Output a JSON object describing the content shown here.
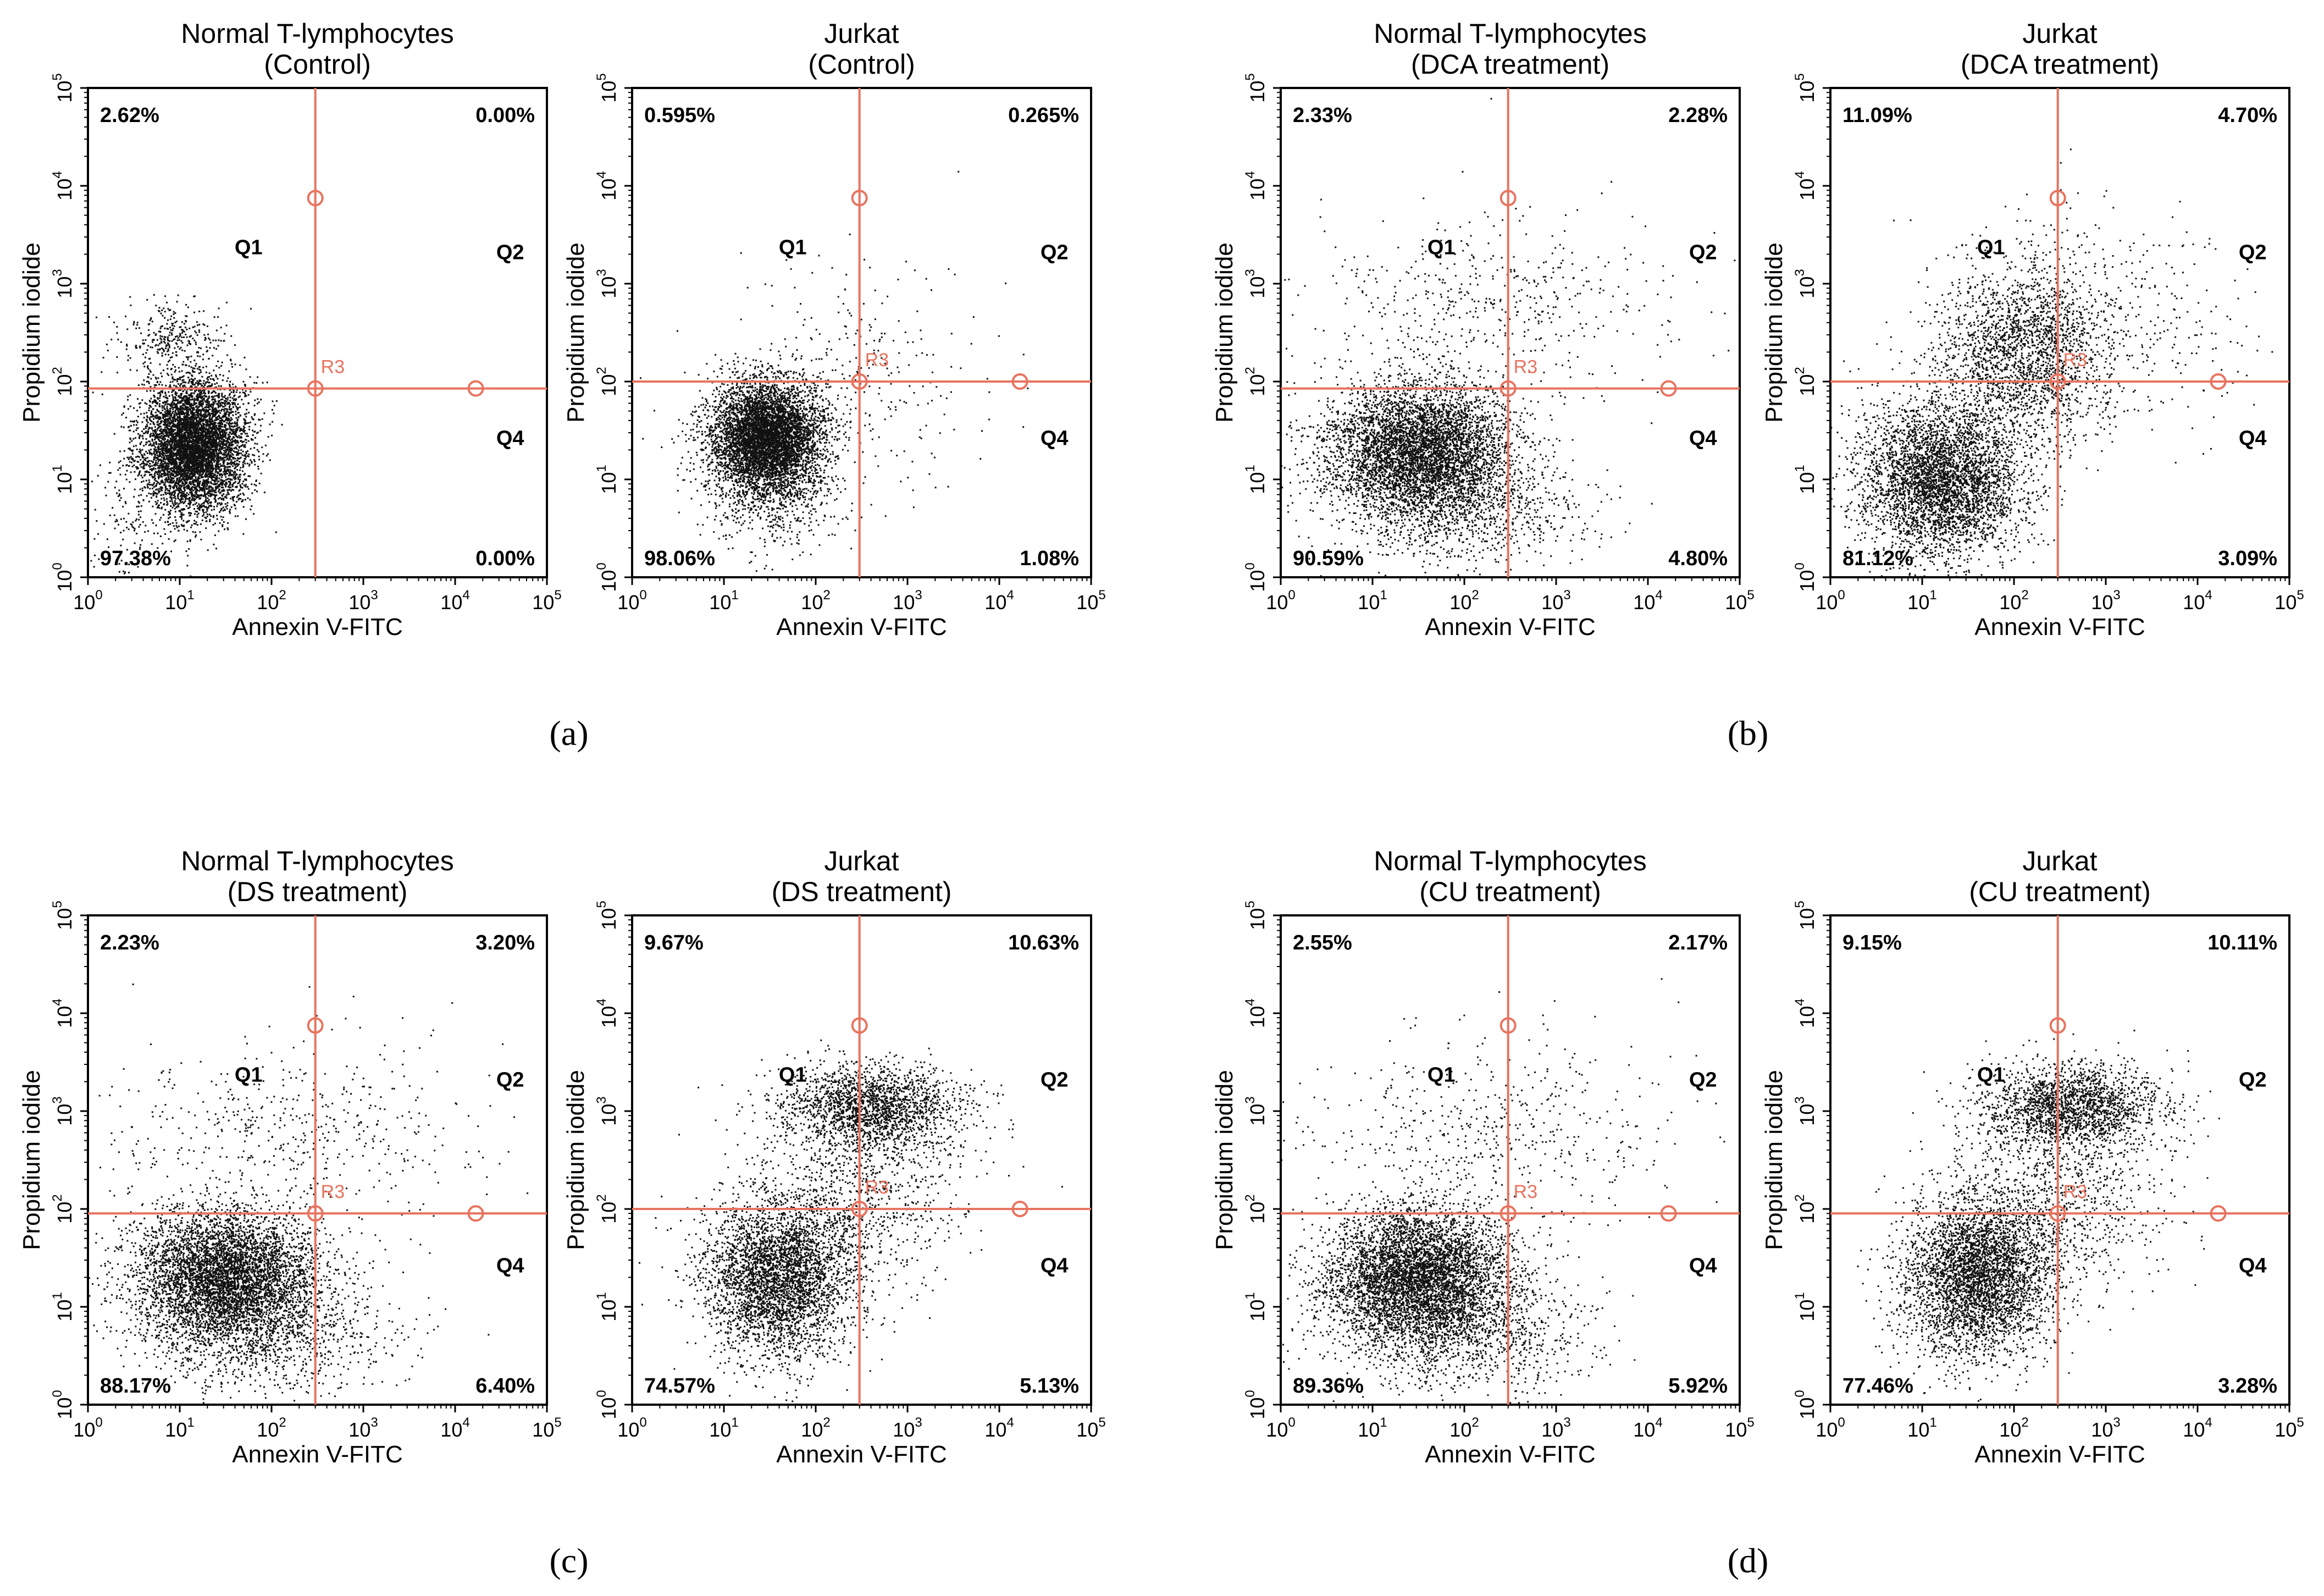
{
  "figure": {
    "panel_labels": [
      "(a)",
      "(b)",
      "(c)",
      "(d)"
    ]
  },
  "colors": {
    "gate": "#e8735f",
    "dots": "#111111",
    "axis": "#000000",
    "background": "#ffffff"
  },
  "chart_data": [
    {
      "panel": "(a)",
      "type": "scatter",
      "title": [
        "Normal T-lymphocytes",
        "(Control)"
      ],
      "xlabel": "Annexin V-FITC",
      "ylabel": "Propidium iodide",
      "xlim": [
        1,
        100000
      ],
      "ylim": [
        1,
        100000
      ],
      "scale": "log",
      "gate": {
        "label": "R3",
        "x": 300,
        "y": 85
      },
      "quadrants": [
        "Q1",
        "Q2",
        "Q4"
      ],
      "percentages": {
        "upper_left": "2.62%",
        "upper_right": "0.00%",
        "lower_left": "97.38%",
        "lower_right": "0.00%"
      },
      "population": "normal_ctrl"
    },
    {
      "panel": "(a)",
      "type": "scatter",
      "title": [
        "Jurkat",
        "(Control)"
      ],
      "xlabel": "Annexin V-FITC",
      "ylabel": "Propidium iodide",
      "xlim": [
        1,
        100000
      ],
      "ylim": [
        1,
        100000
      ],
      "scale": "log",
      "gate": {
        "label": "R3",
        "x": 300,
        "y": 100
      },
      "quadrants": [
        "Q1",
        "Q2",
        "Q4"
      ],
      "percentages": {
        "upper_left": "0.595%",
        "upper_right": "0.265%",
        "lower_left": "98.06%",
        "lower_right": "1.08%"
      },
      "population": "jurkat_ctrl"
    },
    {
      "panel": "(b)",
      "type": "scatter",
      "title": [
        "Normal T-lymphocytes",
        "(DCA treatment)"
      ],
      "xlabel": "Annexin V-FITC",
      "ylabel": "Propidium iodide",
      "xlim": [
        1,
        100000
      ],
      "ylim": [
        1,
        100000
      ],
      "scale": "log",
      "gate": {
        "label": "R3",
        "x": 300,
        "y": 85
      },
      "quadrants": [
        "Q1",
        "Q2",
        "Q4"
      ],
      "percentages": {
        "upper_left": "2.33%",
        "upper_right": "2.28%",
        "lower_left": "90.59%",
        "lower_right": "4.80%"
      },
      "population": "normal_treated"
    },
    {
      "panel": "(b)",
      "type": "scatter",
      "title": [
        "Jurkat",
        "(DCA treatment)"
      ],
      "xlabel": "Annexin V-FITC",
      "ylabel": "Propidium iodide",
      "xlim": [
        1,
        100000
      ],
      "ylim": [
        1,
        100000
      ],
      "scale": "log",
      "gate": {
        "label": "R3",
        "x": 300,
        "y": 100
      },
      "quadrants": [
        "Q1",
        "Q2",
        "Q4"
      ],
      "percentages": {
        "upper_left": "11.09%",
        "upper_right": "4.70%",
        "lower_left": "81.12%",
        "lower_right": "3.09%"
      },
      "population": "jurkat_dca"
    },
    {
      "panel": "(c)",
      "type": "scatter",
      "title": [
        "Normal T-lymphocytes",
        "(DS treatment)"
      ],
      "xlabel": "Annexin V-FITC",
      "ylabel": "Propidium iodide",
      "xlim": [
        1,
        100000
      ],
      "ylim": [
        1,
        100000
      ],
      "scale": "log",
      "gate": {
        "label": "R3",
        "x": 300,
        "y": 90
      },
      "quadrants": [
        "Q1",
        "Q2",
        "Q4"
      ],
      "percentages": {
        "upper_left": "2.23%",
        "upper_right": "3.20%",
        "lower_left": "88.17%",
        "lower_right": "6.40%"
      },
      "population": "normal_treated"
    },
    {
      "panel": "(c)",
      "type": "scatter",
      "title": [
        "Jurkat",
        "(DS treatment)"
      ],
      "xlabel": "Annexin V-FITC",
      "ylabel": "Propidium iodide",
      "xlim": [
        1,
        100000
      ],
      "ylim": [
        1,
        100000
      ],
      "scale": "log",
      "gate": {
        "label": "R3",
        "x": 300,
        "y": 100
      },
      "quadrants": [
        "Q1",
        "Q2",
        "Q4"
      ],
      "percentages": {
        "upper_left": "9.67%",
        "upper_right": "10.63%",
        "lower_left": "74.57%",
        "lower_right": "5.13%"
      },
      "population": "jurkat_strong"
    },
    {
      "panel": "(d)",
      "type": "scatter",
      "title": [
        "Normal T-lymphocytes",
        "(CU treatment)"
      ],
      "xlabel": "Annexin V-FITC",
      "ylabel": "Propidium iodide",
      "xlim": [
        1,
        100000
      ],
      "ylim": [
        1,
        100000
      ],
      "scale": "log",
      "gate": {
        "label": "R3",
        "x": 300,
        "y": 90
      },
      "quadrants": [
        "Q1",
        "Q2",
        "Q4"
      ],
      "percentages": {
        "upper_left": "2.55%",
        "upper_right": "2.17%",
        "lower_left": "89.36%",
        "lower_right": "5.92%"
      },
      "population": "normal_treated"
    },
    {
      "panel": "(d)",
      "type": "scatter",
      "title": [
        "Jurkat",
        "(CU treatment)"
      ],
      "xlabel": "Annexin V-FITC",
      "ylabel": "Propidium iodide",
      "xlim": [
        1,
        100000
      ],
      "ylim": [
        1,
        100000
      ],
      "scale": "log",
      "gate": {
        "label": "R3",
        "x": 300,
        "y": 90
      },
      "quadrants": [
        "Q1",
        "Q2",
        "Q4"
      ],
      "percentages": {
        "upper_left": "9.15%",
        "upper_right": "10.11%",
        "lower_left": "77.46%",
        "lower_right": "3.28%"
      },
      "population": "jurkat_strong"
    }
  ]
}
